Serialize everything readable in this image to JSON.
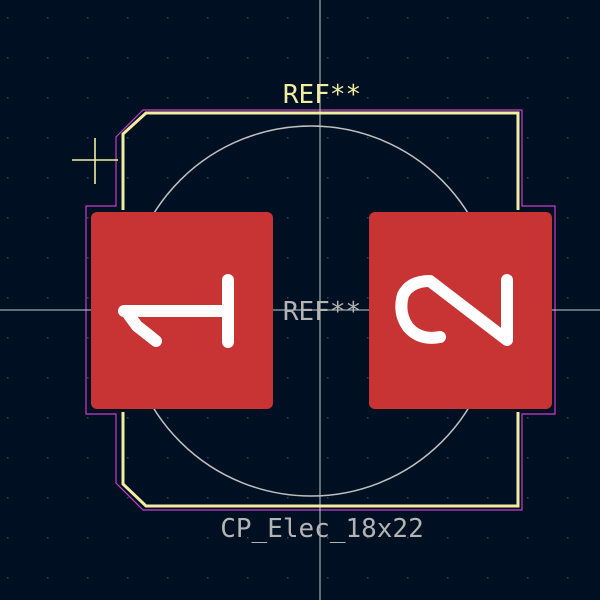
{
  "footprint": {
    "reference_top": "REF**",
    "reference_center": "REF**",
    "value_label": "CP_Elec_18x22",
    "pads": [
      {
        "label": "1"
      },
      {
        "label": "2"
      }
    ]
  },
  "colors": {
    "background": "#001023",
    "grid_dot": "#3a4556",
    "crosshair": "#c8c8c8",
    "courtyard": "#c83cc8",
    "silkscreen": "#f2eda1",
    "fab_outline": "#c0c0c0",
    "pad_fill": "#c83434",
    "pad_number": "#ffffff",
    "fab_text": "#b4b4b4",
    "value_text": "#b4b4b4"
  },
  "icons": {
    "anchor": "crosshair-anchor-icon"
  }
}
